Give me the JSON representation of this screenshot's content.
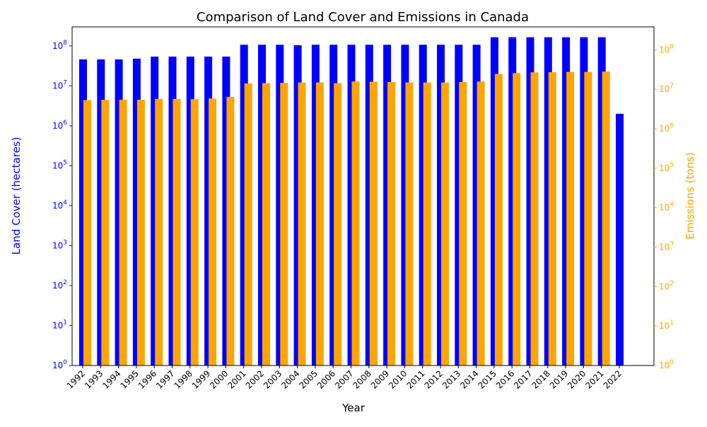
{
  "chart_data": {
    "type": "bar",
    "title": "Comparison of Land Cover and Emissions in Canada",
    "xlabel": "Year",
    "categories": [
      "1992",
      "1993",
      "1994",
      "1995",
      "1996",
      "1997",
      "1998",
      "1999",
      "2000",
      "2001",
      "2002",
      "2003",
      "2004",
      "2005",
      "2006",
      "2007",
      "2008",
      "2009",
      "2010",
      "2011",
      "2012",
      "2013",
      "2014",
      "2015",
      "2016",
      "2017",
      "2018",
      "2019",
      "2020",
      "2021",
      "2022"
    ],
    "y_axes": {
      "left": {
        "label": "Land Cover (hectares)",
        "scale": "log",
        "ylim": [
          1,
          300000000
        ],
        "color": "#0000ff",
        "tick_labels": [
          "10^0",
          "10^1",
          "10^2",
          "10^3",
          "10^4",
          "10^5",
          "10^6",
          "10^7",
          "10^8"
        ]
      },
      "right": {
        "label": "Emissions (tons)",
        "scale": "log",
        "ylim": [
          1,
          380000000
        ],
        "color": "#ffa500",
        "tick_labels": [
          "10^0",
          "10^1",
          "10^2",
          "10^3",
          "10^4",
          "10^5",
          "10^6",
          "10^7",
          "10^8"
        ]
      }
    },
    "series": [
      {
        "axis": "left",
        "color": "#0000ff",
        "values": [
          46000000,
          46000000,
          46000000,
          48000000,
          54000000,
          54000000,
          54000000,
          54000000,
          54000000,
          107000000,
          107000000,
          107000000,
          104000000,
          107000000,
          107000000,
          107000000,
          107000000,
          107000000,
          107000000,
          107000000,
          107000000,
          107000000,
          107000000,
          165000000,
          165000000,
          165000000,
          165000000,
          165000000,
          165000000,
          165000000,
          2000000
        ]
      },
      {
        "axis": "right",
        "color": "#ffa500",
        "values": [
          5300000,
          5400000,
          5400000,
          5400000,
          5700000,
          5700000,
          5600000,
          5800000,
          6400000,
          14000000,
          14300000,
          14500000,
          14800000,
          14800000,
          14300000,
          15700000,
          15500000,
          15300000,
          14800000,
          14800000,
          14800000,
          15300000,
          15700000,
          24500000,
          25600000,
          26800000,
          27000000,
          27500000,
          27500000,
          28000000,
          null
        ]
      }
    ],
    "grid": false,
    "legend": "none"
  }
}
